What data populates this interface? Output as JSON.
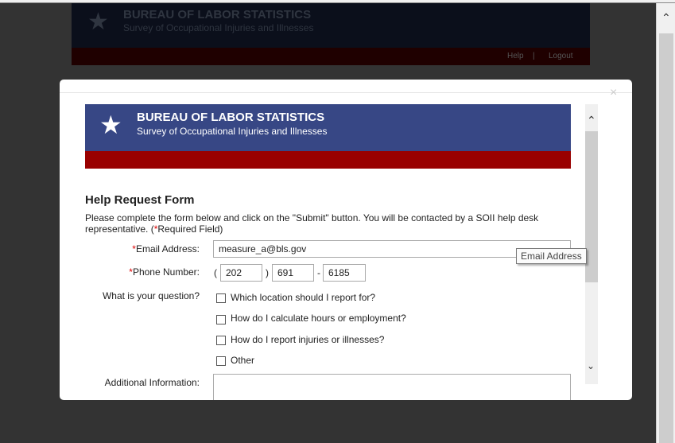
{
  "background_page": {
    "title": "BUREAU OF LABOR STATISTICS",
    "subtitle": "Survey of Occupational Injuries and Illnesses",
    "nav": [
      "Help",
      "Logout"
    ]
  },
  "modal": {
    "banner": {
      "title": "BUREAU OF LABOR STATISTICS",
      "subtitle": "Survey of Occupational Injuries and Illnesses"
    },
    "form_title": "Help Request Form",
    "intro": "Please complete the form below and click on the \"Submit\" button. You will be contacted by a SOII help desk representative. (",
    "required_marker": "*",
    "required_note": "Required Field)",
    "email_label": "Email Address:",
    "email_value": "measure_a@bls.gov",
    "phone_label": "Phone Number:",
    "phone": {
      "area": "202",
      "prefix": "691",
      "line": "6185",
      "open": "(",
      "close": ")",
      "dash": "-"
    },
    "question_label": "What is your question?",
    "options": [
      "Which location should I report for?",
      "How do I calculate hours or employment?",
      "How do I report injuries or illnesses?",
      "Other"
    ],
    "additional_label": "Additional Information:",
    "tooltip": "Email Address",
    "close": "×"
  }
}
